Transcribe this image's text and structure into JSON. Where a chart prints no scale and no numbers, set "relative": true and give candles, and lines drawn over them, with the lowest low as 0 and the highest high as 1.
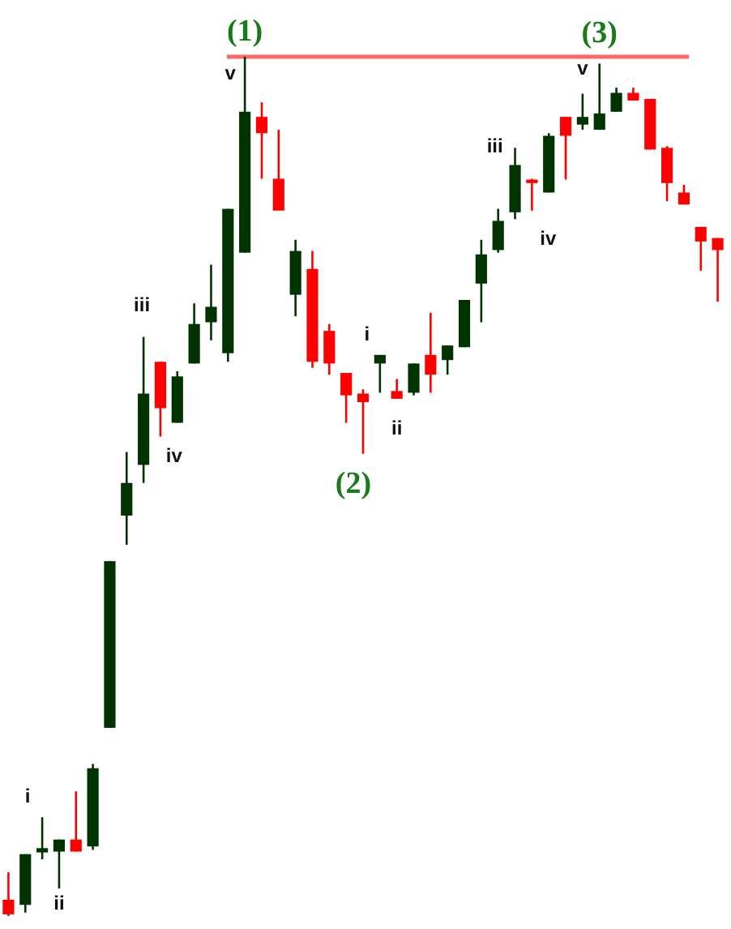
{
  "chart_data": {
    "type": "candlestick",
    "relative": true,
    "categories": [
      null,
      null,
      null,
      null,
      null,
      null,
      null,
      null,
      null,
      null,
      null,
      null,
      null,
      null,
      null,
      null,
      null,
      null,
      null,
      null,
      null,
      null,
      null,
      null,
      null,
      null,
      null,
      null,
      null,
      null,
      null,
      null,
      null,
      null,
      null,
      null,
      null,
      null,
      null,
      null,
      null,
      null,
      null
    ],
    "ohlc": [
      [
        0.019,
        0.051,
        0,
        0.002
      ],
      [
        0.013,
        0.072,
        0.004,
        0.072
      ],
      [
        0.074,
        0.115,
        0.066,
        0.079
      ],
      [
        0.075,
        0.089,
        0.032,
        0.089
      ],
      [
        0.089,
        0.145,
        0.075,
        0.075
      ],
      [
        0.081,
        0.177,
        0.077,
        0.172
      ],
      [
        0.219,
        0.413,
        0.219,
        0.413
      ],
      [
        0.466,
        0.54,
        0.432,
        0.504
      ],
      [
        0.525,
        0.674,
        0.504,
        0.608
      ],
      [
        0.645,
        0.645,
        0.558,
        0.591
      ],
      [
        0.574,
        0.634,
        0.574,
        0.628
      ],
      [
        0.643,
        0.713,
        0.643,
        0.689
      ],
      [
        0.691,
        0.758,
        0.67,
        0.709
      ],
      [
        0.655,
        0.823,
        0.645,
        0.823
      ],
      [
        0.772,
        1,
        0.772,
        0.936
      ],
      [
        0.93,
        0.947,
        0.858,
        0.911
      ],
      [
        0.858,
        0.915,
        0.821,
        0.821
      ],
      [
        0.723,
        0.787,
        0.698,
        0.774
      ],
      [
        0.753,
        0.774,
        0.638,
        0.645
      ],
      [
        0.681,
        0.689,
        0.63,
        0.643
      ],
      [
        0.632,
        0.632,
        0.574,
        0.606
      ],
      [
        0.608,
        0.613,
        0.538,
        0.598
      ],
      [
        0.643,
        0.653,
        0.609,
        0.653
      ],
      [
        0.611,
        0.625,
        0.602,
        0.602
      ],
      [
        0.609,
        0.643,
        0.606,
        0.643
      ],
      [
        0.653,
        0.702,
        0.609,
        0.63
      ],
      [
        0.647,
        0.664,
        0.63,
        0.664
      ],
      [
        0.662,
        0.717,
        0.662,
        0.717
      ],
      [
        0.736,
        0.787,
        0.691,
        0.77
      ],
      [
        0.775,
        0.823,
        0.772,
        0.809
      ],
      [
        0.819,
        0.894,
        0.811,
        0.874
      ],
      [
        0.857,
        0.858,
        0.821,
        0.853
      ],
      [
        0.842,
        0.911,
        0.842,
        0.908
      ],
      [
        0.93,
        0.93,
        0.857,
        0.908
      ],
      [
        0.921,
        0.957,
        0.915,
        0.93
      ],
      [
        0.915,
        0.992,
        0.915,
        0.934
      ],
      [
        0.936,
        0.964,
        0.936,
        0.958
      ],
      [
        0.958,
        0.964,
        0.949,
        0.949
      ],
      [
        0.951,
        0.951,
        0.892,
        0.892
      ],
      [
        0.894,
        0.896,
        0.832,
        0.853
      ],
      [
        0.842,
        0.851,
        0.828,
        0.828
      ],
      [
        0.802,
        0.802,
        0.751,
        0.785
      ],
      [
        0.789,
        0.789,
        0.715,
        0.775
      ]
    ],
    "colors": [
      "#ff0000",
      "#003300",
      "#003300",
      "#003300",
      "#ff0000",
      "#003300",
      "#003300",
      "#003300",
      "#003300",
      "#ff0000",
      "#003300",
      "#003300",
      "#003300",
      "#003300",
      "#003300",
      "#ff0000",
      "#ff0000",
      "#003300",
      "#ff0000",
      "#ff0000",
      "#ff0000",
      "#ff0000",
      "#003300",
      "#ff0000",
      "#003300",
      "#ff0000",
      "#003300",
      "#003300",
      "#003300",
      "#003300",
      "#003300",
      "#ff0000",
      "#003300",
      "#ff0000",
      "#003300",
      "#003300",
      "#003300",
      "#ff0000",
      "#ff0000",
      "#ff0000",
      "#ff0000",
      "#ff0000",
      "#ff0000"
    ],
    "ref_lines": [
      {
        "axis": "y",
        "value": 1,
        "color": "#ff6666"
      }
    ],
    "annotations": [
      "i",
      "ii",
      "iii",
      "iv",
      "(1)",
      "v",
      "i",
      "(2)",
      "ii",
      "iii",
      "iv",
      "v",
      "(3)"
    ]
  }
}
